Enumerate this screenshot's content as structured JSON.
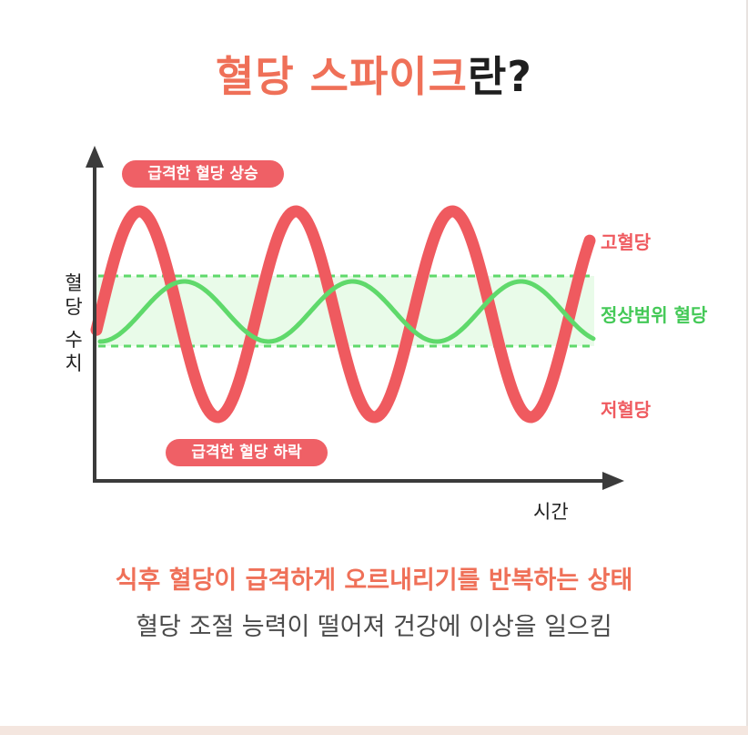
{
  "title": {
    "accent": "혈당 스파이크",
    "rest": "란?"
  },
  "labels": {
    "rise": "급격한 혈당 상승",
    "fall": "급격한 혈당 하락",
    "high": "고혈당",
    "normal": "정상범위 혈당",
    "low": "저혈당",
    "y_axis": [
      "혈",
      "당",
      "수",
      "치"
    ],
    "x_axis": "시간"
  },
  "summary": "식후 혈당이 급격하게 오르내리기를 반복하는 상태",
  "subtitle": "혈당 조절 능력이 떨어져 건강에 이상을 일으킴",
  "colors": {
    "accent": "#ef7058",
    "spike_curve": "#ef5a5f",
    "normal_curve": "#5fd96b",
    "normal_band": "#e9fbe9",
    "axis": "#3b3b3b"
  }
}
